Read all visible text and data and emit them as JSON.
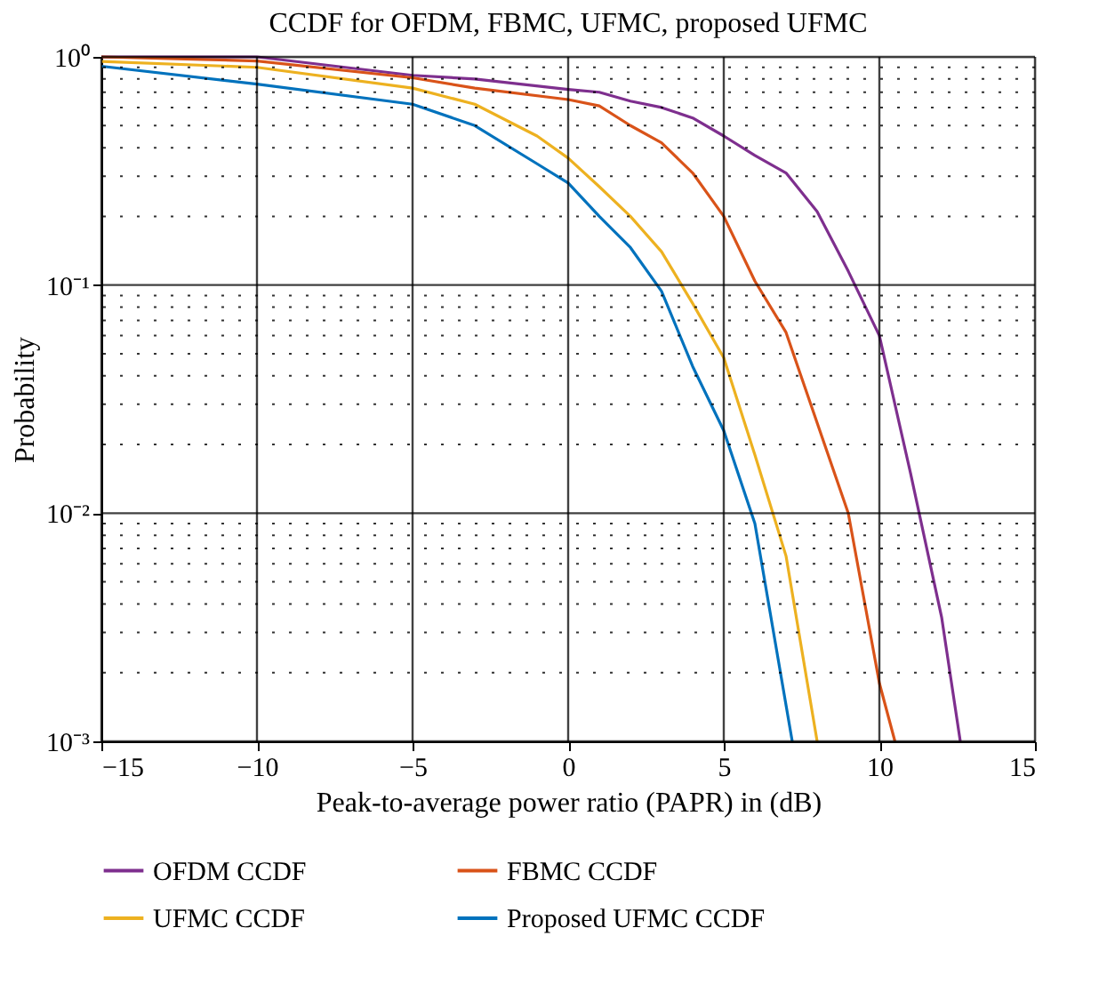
{
  "chart_data": {
    "type": "line",
    "title": "CCDF for OFDM, FBMC, UFMC, proposed UFMC",
    "xlabel": "Peak-to-average power ratio (PAPR) in (dB)",
    "ylabel": "Probability",
    "x": [
      -15,
      -10,
      -5,
      -3,
      0,
      1,
      2,
      3,
      4,
      5,
      6,
      7,
      8,
      9,
      10,
      11,
      12,
      12.6
    ],
    "series": [
      {
        "name": "OFDM CCDF",
        "color": "#7e2f8e",
        "values": [
          1.0,
          1.0,
          0.83,
          0.8,
          0.72,
          0.7,
          0.64,
          0.6,
          0.54,
          0.45,
          0.37,
          0.31,
          0.21,
          0.115,
          0.06,
          0.015,
          0.0035,
          0.001
        ]
      },
      {
        "name": "FBMC CCDF",
        "color": "#d95319",
        "x": [
          -15,
          -10,
          -5,
          -3,
          0,
          1,
          2,
          3,
          4,
          5,
          6,
          7,
          9,
          10,
          10.5
        ],
        "values": [
          1.0,
          0.96,
          0.81,
          0.73,
          0.65,
          0.61,
          0.5,
          0.42,
          0.31,
          0.2,
          0.104,
          0.062,
          0.01,
          0.0018,
          0.001
        ]
      },
      {
        "name": "UFMC CCDF",
        "color": "#edb120",
        "x": [
          -15,
          -10,
          -5,
          -3,
          -1,
          0,
          1,
          2,
          3,
          4,
          5,
          6,
          7,
          8
        ],
        "values": [
          0.955,
          0.9,
          0.73,
          0.62,
          0.45,
          0.36,
          0.27,
          0.2,
          0.14,
          0.083,
          0.048,
          0.018,
          0.0065,
          0.001
        ]
      },
      {
        "name": "Proposed UFMC CCDF",
        "color": "#0072bd",
        "x": [
          -15,
          -10,
          -5,
          -3,
          -1,
          0,
          1,
          2,
          3,
          4,
          5,
          6,
          7.2
        ],
        "values": [
          0.91,
          0.76,
          0.62,
          0.5,
          0.34,
          0.28,
          0.2,
          0.146,
          0.094,
          0.044,
          0.023,
          0.009,
          0.001
        ]
      }
    ],
    "xlim": [
      -15,
      15
    ],
    "xticks": [
      {
        "value": -15,
        "label": "−15"
      },
      {
        "value": -10,
        "label": "−10"
      },
      {
        "value": -5,
        "label": "−5"
      },
      0,
      5,
      10,
      15
    ],
    "ylim": [
      0.001,
      1
    ],
    "yticks": [
      {
        "value": 0.001,
        "label": "10⁻³"
      },
      {
        "value": 0.01,
        "label": "10⁻²"
      },
      {
        "value": 0.1,
        "label": "10⁻¹"
      },
      {
        "value": 1,
        "label": "10⁰"
      }
    ],
    "log": "y",
    "grid": true,
    "legend": "bottom",
    "marker": "none",
    "line_style": "solid"
  }
}
